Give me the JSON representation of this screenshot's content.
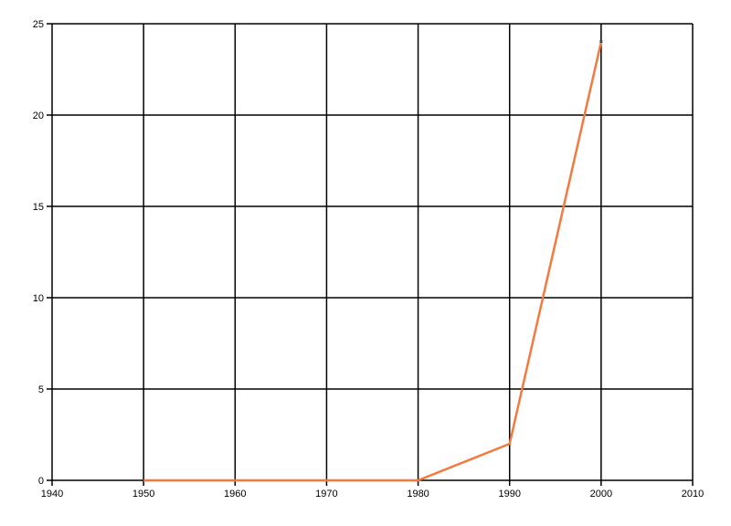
{
  "page": {
    "background_color": "#ffffff"
  },
  "chart_data": {
    "type": "line",
    "title": "",
    "xlabel": "",
    "ylabel": "",
    "x": [
      1950,
      1960,
      1970,
      1980,
      1990,
      2000
    ],
    "series": [
      {
        "name": "series-1",
        "values": [
          0,
          0,
          0,
          0,
          2,
          24
        ],
        "color": "#f4793e",
        "endpoint_marker_color": "#4d4a45"
      }
    ],
    "xlim": [
      1940,
      2010
    ],
    "ylim": [
      0,
      25
    ],
    "x_tick_labels": [
      "1940",
      "1950",
      "1960",
      "1970",
      "1980",
      "1990",
      "2000",
      "2010"
    ],
    "x_ticks": [
      1940,
      1950,
      1960,
      1970,
      1980,
      1990,
      2000,
      2010
    ],
    "y_tick_labels": [
      "0",
      "5",
      "10",
      "15",
      "20",
      "25"
    ],
    "y_ticks": [
      0,
      5,
      10,
      15,
      20,
      25
    ],
    "grid": true,
    "grid_color": "#000000",
    "axis_color": "#000000",
    "tick_label_color": "#000000",
    "legend_position": "none"
  }
}
